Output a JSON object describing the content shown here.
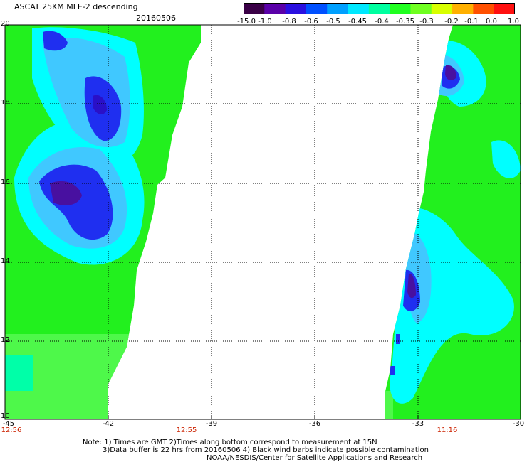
{
  "header": {
    "title": "ASCAT 25KM MLE-2 descending",
    "date": "20160506"
  },
  "colorbar": {
    "labels": [
      "-15.0",
      "-1.0",
      "-0.8",
      "-0.6",
      "-0.5",
      "-0.45",
      "-0.4",
      "-0.35",
      "-0.3",
      "-0.2",
      "-0.1",
      "0.0",
      "1.0"
    ],
    "colors": [
      "#3a0046",
      "#5a00a8",
      "#2a10e0",
      "#0050ff",
      "#00a0ff",
      "#00e8ff",
      "#00ffa0",
      "#20ff20",
      "#70ff20",
      "#d8ff00",
      "#ffb000",
      "#ff5000",
      "#ff1010"
    ]
  },
  "axes": {
    "lat_labels": [
      "20",
      "18",
      "16",
      "14",
      "12",
      "10"
    ],
    "lon_labels": [
      "-45",
      "-42",
      "-39",
      "-36",
      "-33",
      "-30"
    ]
  },
  "times": [
    {
      "id": "t1",
      "text": "12:56"
    },
    {
      "id": "t2",
      "text": "12:55"
    },
    {
      "id": "t3",
      "text": "11:16"
    }
  ],
  "notes": {
    "line1": "Note: 1) Times are GMT 2)Times along bottom correspond to measurement at 15N",
    "line2": "3)Data buffer is 22 hrs from 20160506 4) Black wind barbs indicate possible contamination",
    "line3": "NOAA/NESDIS/Center for Satellite Applications and Research"
  },
  "palette": {
    "green": "#22f01e",
    "green_light": "#4ef84a",
    "teal": "#00ffa8",
    "cyan": "#00ffff",
    "sky": "#40c8ff",
    "blue": "#1f2ff0",
    "deep_blue": "#2a10c8",
    "purple": "#4810a0"
  }
}
